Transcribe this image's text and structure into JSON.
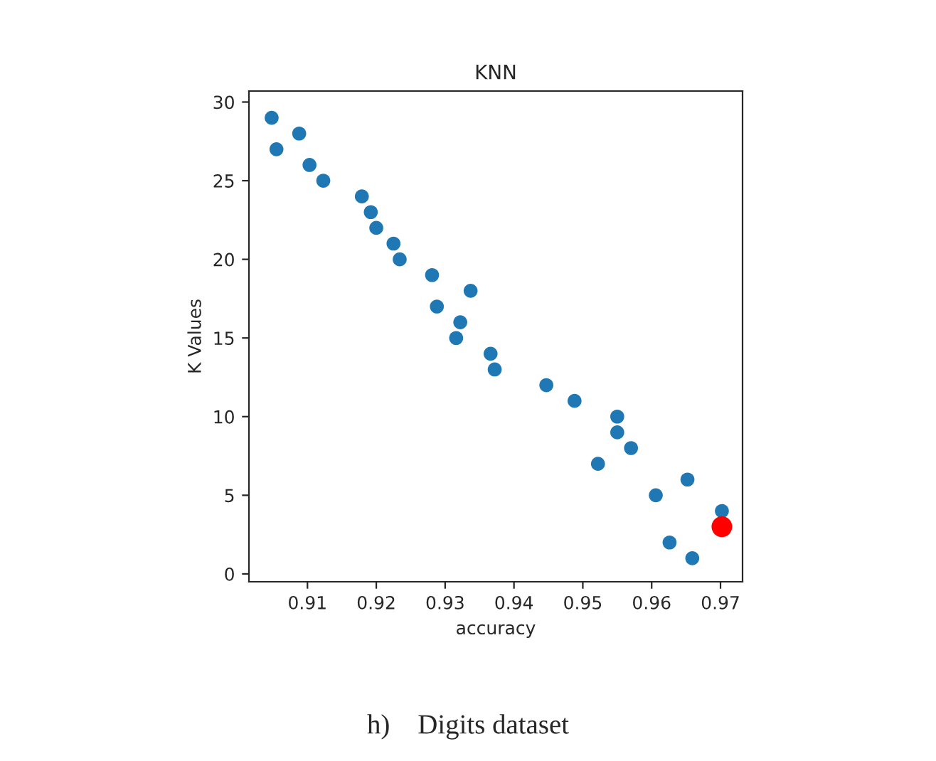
{
  "chart_data": {
    "type": "scatter",
    "title": "KNN",
    "xlabel": "accuracy",
    "ylabel": "K Values",
    "series": [
      {
        "color": "#1f77b4",
        "x": [
          0.9048,
          0.9055,
          0.9088,
          0.9103,
          0.9123,
          0.9179,
          0.9192,
          0.92,
          0.9225,
          0.9234,
          0.9281,
          0.9288,
          0.9337,
          0.9322,
          0.9316,
          0.9366,
          0.9372,
          0.9447,
          0.9488,
          0.955,
          0.955,
          0.957,
          0.9522,
          0.9652,
          0.9606,
          0.9702,
          0.9626,
          0.9659
        ],
        "values": [
          29,
          27,
          28,
          26,
          25,
          24,
          23,
          22,
          21,
          20,
          19,
          17,
          18,
          16,
          15,
          14,
          13,
          12,
          11,
          10,
          9,
          8,
          7,
          6,
          5,
          4,
          2,
          1
        ]
      },
      {
        "color": "#ff0000",
        "x": [
          0.9702
        ],
        "values": [
          3
        ]
      }
    ],
    "xlim": [
      0.9015,
      0.9732
    ],
    "ylim": [
      -0.5,
      30.7
    ],
    "xticks": [
      0.91,
      0.92,
      0.93,
      0.94,
      0.95,
      0.96,
      0.97
    ],
    "yticks": [
      0,
      5,
      10,
      15,
      20,
      25,
      30
    ],
    "grid": false,
    "legend": false,
    "marker": "circle",
    "annotations": [
      "h)    Digits dataset"
    ]
  }
}
